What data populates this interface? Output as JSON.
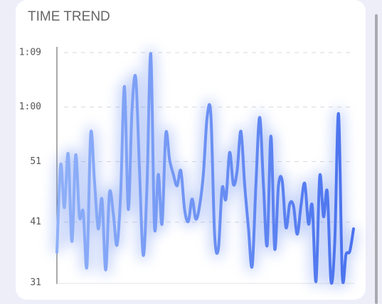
{
  "chart_data": {
    "type": "line",
    "title": "TIME TREND",
    "series": [
      {
        "color": "#5b84f0",
        "values": [
          36,
          50.5,
          43.4,
          52.3,
          37.8,
          52.1,
          41.9,
          42.7,
          33.7,
          55.6,
          47.8,
          39.9,
          44.8,
          33.1,
          45.8,
          42.5,
          37.2,
          46,
          63.4,
          43.1,
          59.5,
          64.8,
          49.5,
          35.5,
          47.2,
          68.8,
          40.1,
          48.9,
          40.7,
          55.6,
          51.3,
          48.9,
          47,
          49.5,
          43.1,
          41.1,
          44.8,
          41.5,
          43.7,
          48.9,
          58.3,
          58.7,
          39,
          36.6,
          46.6,
          44.8,
          52.5,
          47.2,
          49.5,
          56,
          47.2,
          40.1,
          33.7,
          47.2,
          58.3,
          47.2,
          37.2,
          55.2,
          36.6,
          47,
          47.8,
          40.1,
          44,
          43.7,
          39,
          43.7,
          47.4,
          40.7,
          43.7,
          31.2,
          48.6,
          41.9,
          46,
          31.2,
          37.8,
          58.9,
          32.2,
          35.7,
          36.2,
          39.9
        ]
      }
    ],
    "ylim": [
      31,
      69
    ],
    "yticks": [
      31,
      41,
      51,
      {
        "value": 60,
        "label": "1:00"
      },
      {
        "value": 69,
        "label": "1:09"
      }
    ],
    "grid": true
  }
}
